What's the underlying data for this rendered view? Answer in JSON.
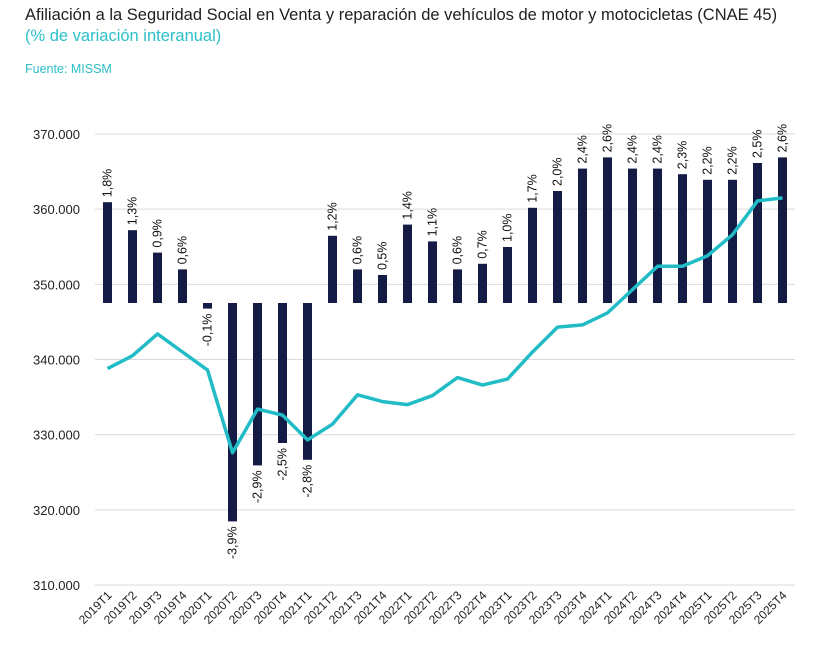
{
  "title": "Afiliación a la Seguridad Social en Venta y reparación de vehículos de motor y motocicletas (CNAE 45)",
  "subtitle": "(% de variación interanual)",
  "source": "Fuente: MISSM",
  "colors": {
    "bars": "#141b45",
    "line": "#22bcc6",
    "grid": "#d9d9d9",
    "accent": "#2bbfc8"
  },
  "chart_data": {
    "type": "bar+line",
    "categories": [
      "2019T1",
      "2019T2",
      "2019T3",
      "2019T4",
      "2020T1",
      "2020T2",
      "2020T3",
      "2020T4",
      "2021T1",
      "2021T2",
      "2021T3",
      "2021T4",
      "2022T1",
      "2022T2",
      "2022T3",
      "2022T4",
      "2023T1",
      "2023T2",
      "2023T3",
      "2023T4",
      "2024T1",
      "2024T2",
      "2024T3",
      "2024T4",
      "2025T1",
      "2025T2",
      "2025T3",
      "2025T4"
    ],
    "bar_series": {
      "unit": "% de variación interanual",
      "values": [
        1.8,
        1.3,
        0.9,
        0.6,
        -0.1,
        -3.9,
        -2.9,
        -2.5,
        -2.8,
        1.2,
        0.6,
        0.5,
        1.4,
        1.1,
        0.6,
        0.7,
        1.0,
        1.7,
        2.0,
        2.4,
        2.6,
        2.4,
        2.4,
        2.3,
        2.2,
        2.2,
        2.5,
        2.6
      ],
      "labels": [
        "1,8%",
        "1,3%",
        "0,9%",
        "0,6%",
        "-0,1%",
        "-3,9%",
        "-2,9%",
        "-2,5%",
        "-2,8%",
        "1,2%",
        "0,6%",
        "0,5%",
        "1,4%",
        "1,1%",
        "0,6%",
        "0,7%",
        "1,0%",
        "1,7%",
        "2,0%",
        "2,4%",
        "2,6%",
        "2,4%",
        "2,4%",
        "2,3%",
        "2,2%",
        "2,2%",
        "2,5%",
        "2,6%"
      ]
    },
    "line_series": {
      "values": [
        338800,
        340500,
        343400,
        341000,
        338600,
        327600,
        333400,
        332600,
        329300,
        331400,
        335300,
        334400,
        334000,
        335200,
        337600,
        336600,
        337400,
        341000,
        344300,
        344600,
        346200,
        349300,
        352400,
        352400,
        353800,
        356600,
        361100,
        361500
      ]
    },
    "y_axis": {
      "range": [
        310000,
        370000
      ],
      "ticks": [
        "310.000",
        "320.000",
        "330.000",
        "340.000",
        "350.000",
        "360.000",
        "370.000"
      ],
      "tick_values": [
        310000,
        320000,
        330000,
        340000,
        350000,
        360000,
        370000
      ]
    },
    "grid": true,
    "legend": "none"
  }
}
